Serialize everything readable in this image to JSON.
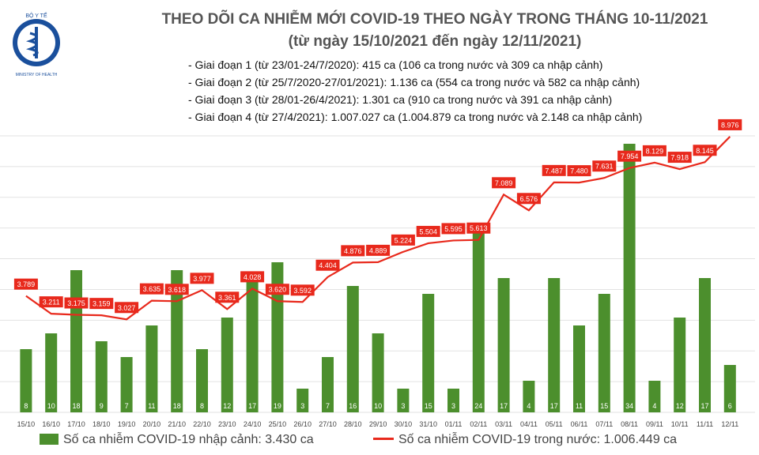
{
  "header": {
    "title": "THEO DÕI CA NHIỄM MỚI COVID-19 THEO NGÀY TRONG THÁNG 10-11/2021",
    "subtitle": "(từ ngày 15/10/2021 đến ngày 12/11/2021)",
    "stages": [
      "- Giai đoạn 1 (từ 23/01-24/7/2020): 415 ca (106 ca trong nước và 309 ca nhập cảnh)",
      "- Giai đoạn 2 (từ 25/7/2020-27/01/2021): 1.136 ca (554 ca trong nước và 582 ca nhập cảnh)",
      "- Giai đoạn 3 (từ 28/01-26/4/2021): 1.301 ca (910 ca trong nước và 391 ca nhập cảnh)",
      "- Giai đoạn 4 (từ 27/4/2021): 1.007.027 ca (1.004.879 ca trong nước và 2.148 ca nhập cảnh)"
    ]
  },
  "logo": {
    "top_text": "BỘ Y TẾ",
    "bottom_text": "MINISTRY OF HEALTH"
  },
  "colors": {
    "bar": "#4c8f2d",
    "line": "#e8291c",
    "label_bg": "#e8291c",
    "title": "#555555"
  },
  "legend": {
    "bar_label": "Số ca nhiễm COVID-19 nhập cảnh: 3.430 ca",
    "line_label": "Số ca nhiễm COVID-19 trong nước: 1.006.449 ca"
  },
  "chart_data": {
    "type": "bar+line",
    "categories": [
      "15/10",
      "16/10",
      "17/10",
      "18/10",
      "19/10",
      "20/10",
      "21/10",
      "22/10",
      "23/10",
      "24/10",
      "25/10",
      "26/10",
      "27/10",
      "28/10",
      "29/10",
      "30/10",
      "31/10",
      "01/11",
      "02/11",
      "03/11",
      "04/11",
      "05/11",
      "06/11",
      "07/11",
      "08/11",
      "09/11",
      "10/11",
      "11/11",
      "12/11"
    ],
    "series": [
      {
        "name": "Số ca nhiễm COVID-19 nhập cảnh: 3.430 ca",
        "type": "bar",
        "axis": "right",
        "values": [
          8,
          10,
          18,
          9,
          7,
          11,
          18,
          8,
          12,
          17,
          19,
          3,
          7,
          16,
          10,
          3,
          15,
          3,
          24,
          17,
          4,
          17,
          11,
          15,
          34,
          4,
          12,
          17,
          6
        ],
        "labels": [
          "8",
          "10",
          "18",
          "9",
          "7",
          "11",
          "18",
          "8",
          "12",
          "17",
          "19",
          "3",
          "7",
          "16",
          "10",
          "3",
          "15",
          "3",
          "24",
          "17",
          "4",
          "17",
          "11",
          "15",
          "34",
          "4",
          "12",
          "17",
          "6"
        ]
      },
      {
        "name": "Số ca nhiễm COVID-19 trong nước: 1.006.449 ca",
        "type": "line",
        "axis": "left",
        "values": [
          3789,
          3211,
          3175,
          3159,
          3027,
          3635,
          3618,
          3977,
          3361,
          4028,
          3620,
          3592,
          4404,
          4876,
          4889,
          5224,
          5504,
          5595,
          5613,
          7089,
          6576,
          7487,
          7480,
          7631,
          7954,
          8129,
          7918,
          8145,
          8976
        ],
        "labels": [
          "3.789",
          "3.211",
          "3.175",
          "3.159",
          "3.027",
          "3.635",
          "3.618",
          "3.977",
          "3.361",
          "4.028",
          "3.620",
          "3.592",
          "4.404",
          "4.876",
          "4.889",
          "5.224",
          "5.504",
          "5.595",
          "5.613",
          "7.089",
          "6.576",
          "7.487",
          "7.480",
          "7.631",
          "7.954",
          "8.129",
          "7.918",
          "8.145",
          "8.976"
        ]
      }
    ],
    "ylim_left": [
      0,
      9000
    ],
    "ylim_right": [
      0,
      35
    ],
    "grid": true
  }
}
